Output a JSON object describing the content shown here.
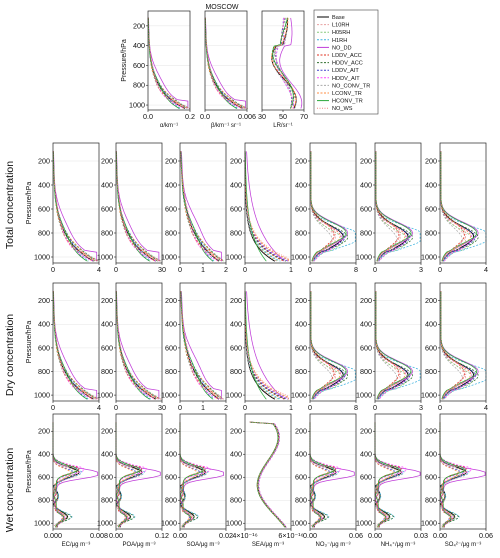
{
  "figure": {
    "title": "MOSCOW",
    "row_labels": [
      "Total concentration",
      "Dry concentration",
      "Wet concentration"
    ],
    "y_axis_label": "Pressure/hPa"
  },
  "legend": {
    "entries": [
      {
        "name": "Base",
        "color": "#000000",
        "dash": ""
      },
      {
        "name": "L10RH",
        "color": "#e8a0a0",
        "dash": "2,1.5"
      },
      {
        "name": "H05RH",
        "color": "#86c97c",
        "dash": "2,1.5"
      },
      {
        "name": "H1RH",
        "color": "#3fb3df",
        "dash": "2,1.5"
      },
      {
        "name": "NO_DD",
        "color": "#c03dd8",
        "dash": ""
      },
      {
        "name": "LDDV_ACC",
        "color": "#e03020",
        "dash": "2,1.5"
      },
      {
        "name": "HDDV_ACC",
        "color": "#2f6f2f",
        "dash": "2,1.5"
      },
      {
        "name": "LDDV_AIT",
        "color": "#4040cc",
        "dash": "2,1.5"
      },
      {
        "name": "HDDV_AIT",
        "color": "#ff44ff",
        "dash": "2,1.5"
      },
      {
        "name": "NO_CONV_TR",
        "color": "#aaaaaa",
        "dash": "2,1.5"
      },
      {
        "name": "LCONV_TR",
        "color": "#ff8c40",
        "dash": "2,1.5"
      },
      {
        "name": "HCONV_TR",
        "color": "#2aa83a",
        "dash": ""
      },
      {
        "name": "NO_WS",
        "color": "#f08080",
        "dash": "1,1.5"
      }
    ]
  },
  "chart_data": [
    {
      "type": "line",
      "panel": "alpha",
      "xlabel": "α/km⁻¹",
      "xlim": [
        0,
        0.2
      ],
      "xticks": [
        "0.0",
        "0.2"
      ],
      "ylim": [
        1050,
        50
      ],
      "yticks": [
        200,
        400,
        600,
        800,
        1000
      ],
      "shape": "decay",
      "xpeak": 0.19
    },
    {
      "type": "line",
      "panel": "beta",
      "xlabel": "β/km⁻¹ sr⁻¹",
      "xlim": [
        0,
        0.006
      ],
      "xticks": [
        "0.0",
        "0.006"
      ],
      "ylim": [
        1050,
        50
      ],
      "yticks": [
        200,
        400,
        600,
        800,
        1000
      ],
      "shape": "decay",
      "xpeak": 0.0058
    },
    {
      "type": "line",
      "panel": "LR",
      "xlabel": "LR/sr⁻¹",
      "xlim": [
        30,
        70
      ],
      "xticks": [
        "30",
        "50",
        "70"
      ],
      "ylim": [
        1050,
        50
      ],
      "yticks": [
        200,
        400,
        600,
        800,
        1000
      ],
      "shape": "lidar",
      "xpeak": 45
    },
    {
      "type": "line",
      "row": "total",
      "xlabel": "",
      "xlim": [
        0,
        4
      ],
      "xticks": [
        "0",
        "4"
      ],
      "ylim": [
        1050,
        50
      ],
      "yticks": [
        200,
        400,
        600,
        800,
        1000
      ],
      "shape": "decay",
      "xpeak": 3.8
    },
    {
      "type": "line",
      "row": "total",
      "xlabel": "",
      "xlim": [
        0,
        30
      ],
      "xticks": [
        "0",
        "30"
      ],
      "ylim": [
        1050,
        50
      ],
      "yticks": [
        200,
        400,
        600,
        800,
        1000
      ],
      "shape": "decay",
      "xpeak": 28
    },
    {
      "type": "line",
      "row": "total",
      "xlabel": "",
      "xlim": [
        0,
        2
      ],
      "xticks": [
        "0",
        "1",
        "2"
      ],
      "ylim": [
        1050,
        50
      ],
      "yticks": [
        200,
        400,
        600,
        800,
        1000
      ],
      "shape": "decay2",
      "xpeak": 1.8
    },
    {
      "type": "line",
      "row": "total",
      "xlabel": "",
      "xlim": [
        0,
        1
      ],
      "xticks": [
        "0",
        "1"
      ],
      "ylim": [
        1050,
        50
      ],
      "yticks": [
        200,
        400,
        600,
        800,
        1000
      ],
      "shape": "sea",
      "xpeak": 0.9
    },
    {
      "type": "line",
      "row": "total",
      "xlabel": "",
      "xlim": [
        0,
        8
      ],
      "xticks": [
        "0",
        "8"
      ],
      "ylim": [
        1050,
        50
      ],
      "yticks": [
        200,
        400,
        600,
        800,
        1000
      ],
      "shape": "bulge",
      "xpeak": 7.5
    },
    {
      "type": "line",
      "row": "total",
      "xlabel": "",
      "xlim": [
        0,
        3
      ],
      "xticks": [
        "0",
        "3"
      ],
      "ylim": [
        1050,
        50
      ],
      "yticks": [
        200,
        400,
        600,
        800,
        1000
      ],
      "shape": "bulge",
      "xpeak": 2.8
    },
    {
      "type": "line",
      "row": "total",
      "xlabel": "",
      "xlim": [
        0,
        4
      ],
      "xticks": [
        "0",
        "4"
      ],
      "ylim": [
        1050,
        50
      ],
      "yticks": [
        200,
        400,
        600,
        800,
        1000
      ],
      "shape": "bulge",
      "xpeak": 3.8
    },
    {
      "type": "line",
      "row": "dry",
      "xlabel": "",
      "xlim": [
        0,
        4
      ],
      "xticks": [
        "0",
        "4"
      ],
      "ylim": [
        1050,
        50
      ],
      "yticks": [
        200,
        400,
        600,
        800,
        1000
      ],
      "shape": "decay",
      "xpeak": 3.8
    },
    {
      "type": "line",
      "row": "dry",
      "xlabel": "",
      "xlim": [
        0,
        30
      ],
      "xticks": [
        "0",
        "30"
      ],
      "ylim": [
        1050,
        50
      ],
      "yticks": [
        200,
        400,
        600,
        800,
        1000
      ],
      "shape": "decay",
      "xpeak": 28
    },
    {
      "type": "line",
      "row": "dry",
      "xlabel": "",
      "xlim": [
        0,
        2
      ],
      "xticks": [
        "0",
        "1",
        "2"
      ],
      "ylim": [
        1050,
        50
      ],
      "yticks": [
        200,
        400,
        600,
        800,
        1000
      ],
      "shape": "decay2",
      "xpeak": 1.8
    },
    {
      "type": "line",
      "row": "dry",
      "xlabel": "",
      "xlim": [
        0,
        1
      ],
      "xticks": [
        "0",
        "1"
      ],
      "ylim": [
        1050,
        50
      ],
      "yticks": [
        200,
        400,
        600,
        800,
        1000
      ],
      "shape": "sea",
      "xpeak": 0.9
    },
    {
      "type": "line",
      "row": "dry",
      "xlabel": "",
      "xlim": [
        0,
        8
      ],
      "xticks": [
        "0",
        "8"
      ],
      "ylim": [
        1050,
        50
      ],
      "yticks": [
        200,
        400,
        600,
        800,
        1000
      ],
      "shape": "bulge",
      "xpeak": 7.5
    },
    {
      "type": "line",
      "row": "dry",
      "xlabel": "",
      "xlim": [
        0,
        3
      ],
      "xticks": [
        "0",
        "3"
      ],
      "ylim": [
        1050,
        50
      ],
      "yticks": [
        200,
        400,
        600,
        800,
        1000
      ],
      "shape": "bulge",
      "xpeak": 2.8
    },
    {
      "type": "line",
      "row": "dry",
      "xlabel": "",
      "xlim": [
        0,
        4
      ],
      "xticks": [
        "0",
        "4"
      ],
      "ylim": [
        1050,
        50
      ],
      "yticks": [
        200,
        400,
        600,
        800,
        1000
      ],
      "shape": "bulge",
      "xpeak": 3.8
    },
    {
      "type": "line",
      "row": "wet",
      "xlabel": "EC/μg m⁻³",
      "xlim": [
        0,
        0.008
      ],
      "xticks": [
        "0.000",
        "0.008"
      ],
      "ylim": [
        1050,
        50
      ],
      "yticks": [
        200,
        400,
        600,
        800,
        1000
      ],
      "shape": "wetpeak",
      "xpeak": 0.0074
    },
    {
      "type": "line",
      "row": "wet",
      "xlabel": "POA/μg m⁻³",
      "xlim": [
        0,
        0.12
      ],
      "xticks": [
        "0.00",
        "0.12"
      ],
      "ylim": [
        1050,
        50
      ],
      "yticks": [
        200,
        400,
        600,
        800,
        1000
      ],
      "shape": "wetpeak",
      "xpeak": 0.11
    },
    {
      "type": "line",
      "row": "wet",
      "xlabel": "SOA/μg m⁻³",
      "xlim": [
        0,
        0.02
      ],
      "xticks": [
        "0.00",
        "0.02"
      ],
      "ylim": [
        1050,
        50
      ],
      "yticks": [
        200,
        400,
        600,
        800,
        1000
      ],
      "shape": "wetpeak",
      "xpeak": 0.018
    },
    {
      "type": "line",
      "row": "wet",
      "xlabel": "SEA/μg m⁻³",
      "xlim": [
        4e-16,
        6e-16
      ],
      "xticks": [
        "4×10⁻¹⁶",
        "6×10⁻¹⁶"
      ],
      "ylim": [
        1050,
        50
      ],
      "yticks": [
        200,
        400,
        600,
        800,
        1000
      ],
      "shape": "seawet",
      "xpeak": 5.6e-16
    },
    {
      "type": "line",
      "row": "wet",
      "xlabel": "NO₃⁻/μg m⁻³",
      "xlim": [
        0,
        0.06
      ],
      "xticks": [
        "0.00",
        "0.06"
      ],
      "ylim": [
        1050,
        50
      ],
      "yticks": [
        200,
        400,
        600,
        800,
        1000
      ],
      "shape": "wetpeak",
      "xpeak": 0.055
    },
    {
      "type": "line",
      "row": "wet",
      "xlabel": "NH₄⁺/μg m⁻³",
      "xlim": [
        0,
        0.03
      ],
      "xticks": [
        "0.00",
        "0.03"
      ],
      "ylim": [
        1050,
        50
      ],
      "yticks": [
        200,
        400,
        600,
        800,
        1000
      ],
      "shape": "wetpeak",
      "xpeak": 0.028
    },
    {
      "type": "line",
      "row": "wet",
      "xlabel": "SO₄²⁻/μg m⁻³",
      "xlim": [
        0,
        0.06
      ],
      "xticks": [
        "0.00",
        "0.06"
      ],
      "ylim": [
        1050,
        50
      ],
      "yticks": [
        200,
        400,
        600,
        800,
        1000
      ],
      "shape": "wetpeak",
      "xpeak": 0.056
    }
  ]
}
